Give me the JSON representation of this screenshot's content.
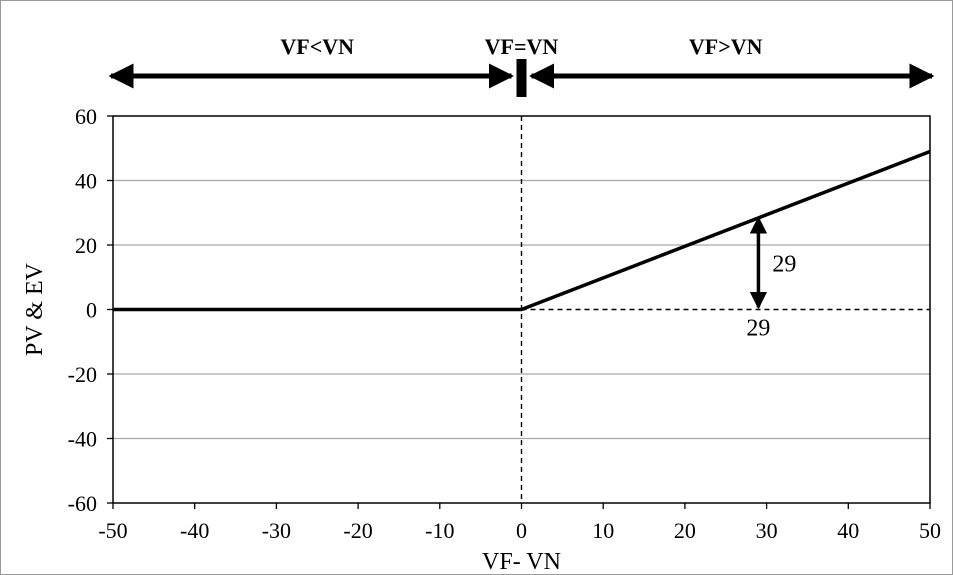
{
  "chart_data": {
    "type": "line",
    "xlabel": "VF- VN",
    "ylabel": "PV & EV",
    "xlim": [
      -50,
      50
    ],
    "ylim": [
      -60,
      60
    ],
    "x_ticks": [
      -50,
      -40,
      -30,
      -20,
      -10,
      0,
      10,
      20,
      30,
      40,
      50
    ],
    "y_ticks": [
      60,
      40,
      20,
      0,
      -20,
      -40,
      -60
    ],
    "grid": "horizontal",
    "series": [
      {
        "x": [
          -50,
          0,
          50
        ],
        "y": [
          0,
          0,
          49
        ]
      }
    ],
    "reference_lines": [
      {
        "orientation": "vertical",
        "value": 0,
        "style": "dashed"
      },
      {
        "orientation": "horizontal",
        "value": 0,
        "from_x": 0,
        "to_x": 50,
        "style": "dashed"
      }
    ],
    "regions": [
      {
        "label": "VF<VN",
        "from": -50,
        "to": 0
      },
      {
        "label": "VF=VN",
        "at": 0
      },
      {
        "label": "VF>VN",
        "from": 0,
        "to": 50
      }
    ],
    "annotations": [
      {
        "type": "double-arrow",
        "x": 29,
        "y_from": 0,
        "y_to": 29,
        "label": "29"
      },
      {
        "type": "text",
        "x": 29,
        "y": 0,
        "label": "29",
        "position": "below"
      }
    ]
  }
}
